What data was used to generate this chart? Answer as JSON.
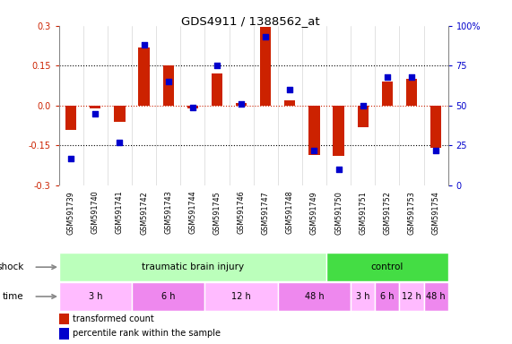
{
  "title": "GDS4911 / 1388562_at",
  "samples": [
    "GSM591739",
    "GSM591740",
    "GSM591741",
    "GSM591742",
    "GSM591743",
    "GSM591744",
    "GSM591745",
    "GSM591746",
    "GSM591747",
    "GSM591748",
    "GSM591749",
    "GSM591750",
    "GSM591751",
    "GSM591752",
    "GSM591753",
    "GSM591754"
  ],
  "transformed_count": [
    -0.09,
    -0.01,
    -0.06,
    0.22,
    0.15,
    -0.01,
    0.12,
    0.01,
    0.295,
    0.02,
    -0.185,
    -0.19,
    -0.08,
    0.09,
    0.1,
    -0.16
  ],
  "percentile_rank": [
    17,
    45,
    27,
    88,
    65,
    49,
    75,
    51,
    93,
    60,
    22,
    10,
    50,
    68,
    68,
    22
  ],
  "ylim": [
    -0.3,
    0.3
  ],
  "yticks_left": [
    -0.3,
    -0.15,
    0.0,
    0.15,
    0.3
  ],
  "yticks_right": [
    0,
    25,
    50,
    75,
    100
  ],
  "bar_color": "#cc2200",
  "dot_color": "#0000cc",
  "sample_bg": "#d0d0d0",
  "shock_groups": [
    {
      "label": "traumatic brain injury",
      "start": 0,
      "end": 11,
      "color": "#bbffbb"
    },
    {
      "label": "control",
      "start": 11,
      "end": 16,
      "color": "#44dd44"
    }
  ],
  "time_groups": [
    {
      "label": "3 h",
      "start": 0,
      "end": 3,
      "color": "#ffbbff"
    },
    {
      "label": "6 h",
      "start": 3,
      "end": 6,
      "color": "#ee88ee"
    },
    {
      "label": "12 h",
      "start": 6,
      "end": 9,
      "color": "#ffbbff"
    },
    {
      "label": "48 h",
      "start": 9,
      "end": 12,
      "color": "#ee88ee"
    },
    {
      "label": "3 h",
      "start": 12,
      "end": 13,
      "color": "#ffbbff"
    },
    {
      "label": "6 h",
      "start": 13,
      "end": 14,
      "color": "#ee88ee"
    },
    {
      "label": "12 h",
      "start": 14,
      "end": 15,
      "color": "#ffbbff"
    },
    {
      "label": "48 h",
      "start": 15,
      "end": 16,
      "color": "#ee88ee"
    }
  ],
  "legend_bar_label": "transformed count",
  "legend_dot_label": "percentile rank within the sample",
  "shock_label": "shock",
  "time_label": "time",
  "arrow_color": "#888888"
}
